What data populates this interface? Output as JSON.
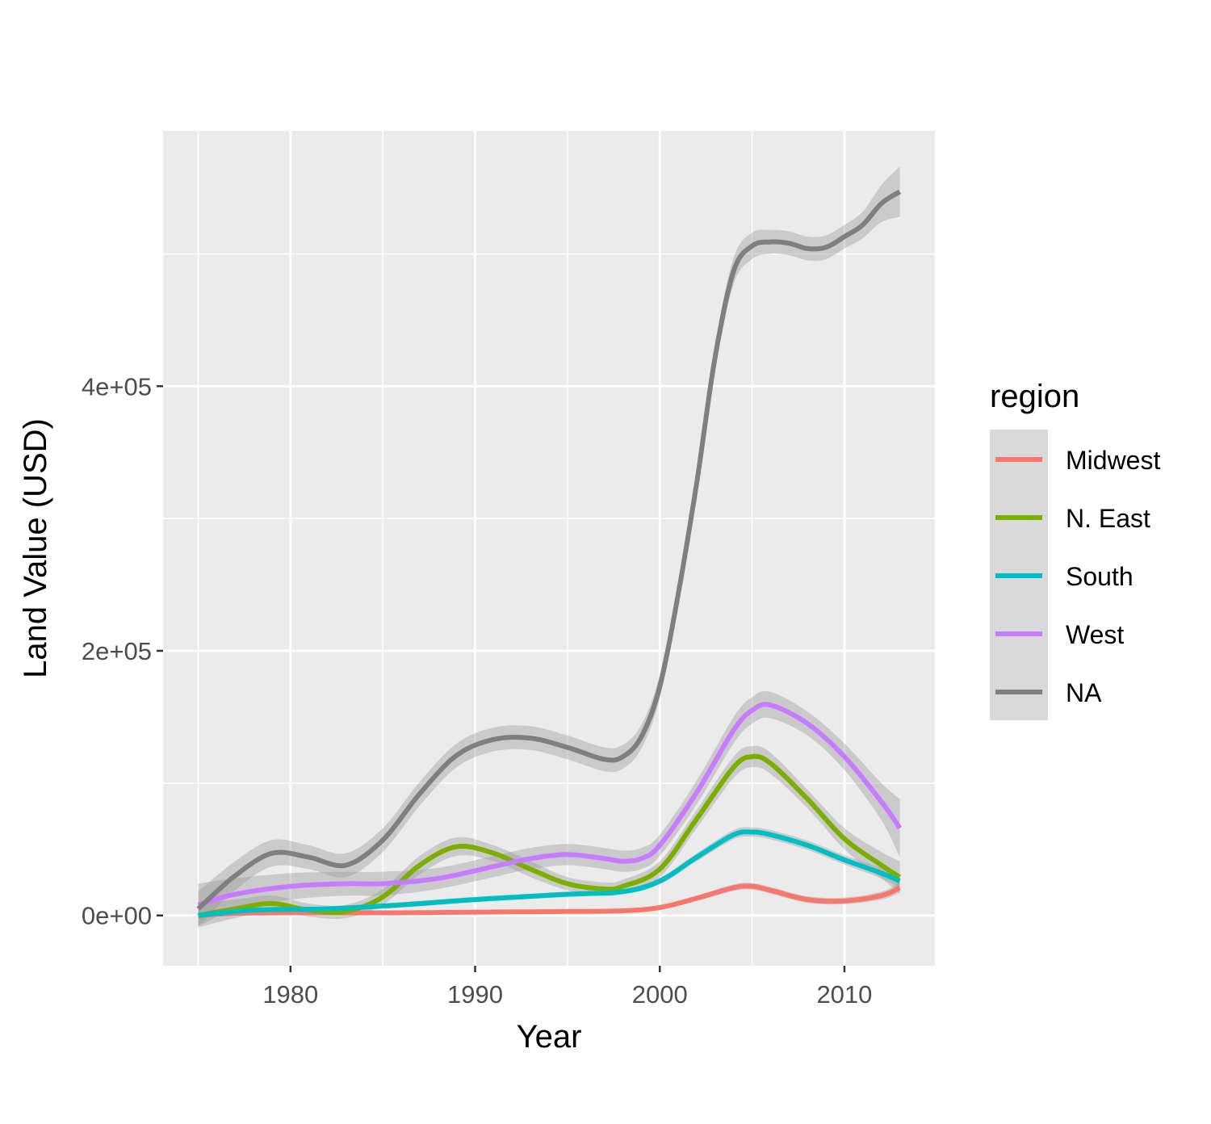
{
  "chart_data": {
    "type": "line",
    "xlabel": "Year",
    "ylabel": "Land Value (USD)",
    "xlim": [
      1973.1,
      2014.9
    ],
    "ylim": [
      -38000,
      593000
    ],
    "x_ticks": [
      1980,
      1990,
      2000,
      2010
    ],
    "x_tick_labels": [
      "1980",
      "1990",
      "2000",
      "2010"
    ],
    "x_minor_ticks": [
      1975,
      1985,
      1995,
      2005
    ],
    "y_ticks": [
      0,
      200000,
      400000
    ],
    "y_tick_labels": [
      "0e+00",
      "2e+05",
      "4e+05"
    ],
    "y_minor_ticks": [
      100000,
      300000,
      500000
    ],
    "grid": true,
    "panel_background": "#EBEBEB",
    "confidence_band_color": "#999999",
    "legend": {
      "title": "region",
      "position": "right",
      "key_background": "#D9D9D9"
    },
    "series": [
      {
        "name": "Midwest",
        "color": "#F8766D",
        "x": [
          1975,
          1977,
          1980,
          1983,
          1986,
          1990,
          1995,
          1998,
          2000,
          2002,
          2004,
          2005,
          2006,
          2008,
          2010,
          2012,
          2013
        ],
        "y": [
          0,
          1500,
          2000,
          2000,
          2000,
          2500,
          3000,
          3500,
          6000,
          13000,
          21000,
          22000,
          19000,
          12000,
          11000,
          15000,
          21000
        ],
        "band": [
          2000,
          1500,
          1500,
          1500,
          1500,
          1500,
          1500,
          1500,
          1800,
          2000,
          2500,
          2500,
          2500,
          2500,
          2500,
          3000,
          4000
        ]
      },
      {
        "name": "N. East",
        "color": "#7CAE00",
        "x": [
          1975,
          1977,
          1979,
          1981,
          1983,
          1985,
          1987,
          1989,
          1991,
          1993,
          1995,
          1997,
          1998,
          2000,
          2002,
          2004,
          2005,
          2006,
          2008,
          2010,
          2012,
          2013
        ],
        "y": [
          0,
          5000,
          9000,
          4000,
          3000,
          14000,
          38000,
          52000,
          47000,
          35000,
          24000,
          20000,
          22000,
          35000,
          73000,
          112000,
          120000,
          115000,
          88000,
          58000,
          38000,
          29000
        ],
        "band": [
          9000,
          7000,
          6000,
          5000,
          5000,
          6000,
          7000,
          7000,
          6000,
          6000,
          5000,
          5000,
          5000,
          6000,
          7000,
          8000,
          8000,
          8000,
          7000,
          8000,
          10000,
          12000
        ]
      },
      {
        "name": "South",
        "color": "#00BFC4",
        "x": [
          1975,
          1978,
          1982,
          1986,
          1990,
          1995,
          1998,
          2000,
          2002,
          2004,
          2005,
          2006,
          2008,
          2010,
          2012,
          2013
        ],
        "y": [
          0,
          4000,
          5000,
          8000,
          12000,
          16000,
          18000,
          26000,
          44000,
          61000,
          63000,
          61000,
          53000,
          42000,
          32000,
          26000
        ],
        "band": [
          2500,
          2000,
          2000,
          2000,
          2000,
          2000,
          2000,
          2500,
          3000,
          3500,
          3500,
          3500,
          3500,
          3500,
          4000,
          5000
        ]
      },
      {
        "name": "West",
        "color": "#C77CFF",
        "x": [
          1975,
          1977,
          1980,
          1983,
          1985,
          1988,
          1991,
          1993,
          1995,
          1997,
          1998,
          1999,
          2000,
          2002,
          2004,
          2005,
          2006,
          2008,
          2010,
          2012,
          2013
        ],
        "y": [
          8000,
          16000,
          22000,
          24000,
          24000,
          28000,
          37000,
          43000,
          46000,
          43000,
          41000,
          43000,
          53000,
          93000,
          140000,
          155000,
          159000,
          145000,
          120000,
          86000,
          66000
        ],
        "band": [
          16000,
          12000,
          10000,
          9000,
          9000,
          8000,
          8000,
          8000,
          8000,
          8000,
          8000,
          8000,
          8000,
          9000,
          10000,
          10000,
          10000,
          9000,
          10000,
          14000,
          22000
        ]
      },
      {
        "name": "NA",
        "color": "#7F7F7F",
        "x": [
          1975,
          1977,
          1979,
          1981,
          1983,
          1985,
          1987,
          1989,
          1991,
          1993,
          1995,
          1997,
          1998,
          1999,
          2000,
          2001,
          2002,
          2003,
          2004,
          2005,
          2006,
          2007,
          2008,
          2009,
          2010,
          2011,
          2012,
          2013
        ],
        "y": [
          5000,
          30000,
          47000,
          44000,
          38000,
          57000,
          92000,
          121000,
          133000,
          134000,
          127000,
          118000,
          120000,
          135000,
          173000,
          243000,
          327000,
          422000,
          487000,
          506000,
          509000,
          508000,
          504000,
          505000,
          513000,
          522000,
          538000,
          547000
        ],
        "band": [
          13000,
          11000,
          10000,
          9000,
          9000,
          9000,
          9000,
          9000,
          9000,
          9000,
          9000,
          9000,
          9000,
          9000,
          9000,
          9000,
          10000,
          10000,
          10000,
          10000,
          9000,
          9000,
          9000,
          9000,
          9000,
          10000,
          14000,
          19000
        ]
      }
    ]
  }
}
